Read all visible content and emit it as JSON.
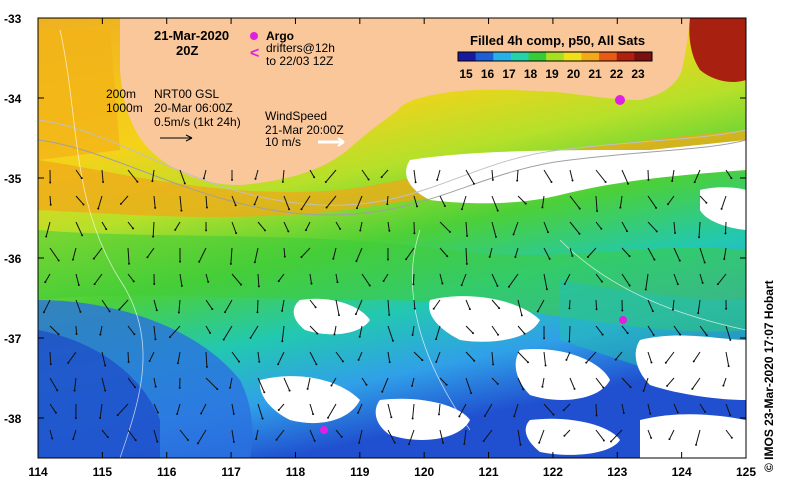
{
  "title": {
    "date": "21-Mar-2020",
    "time": "20Z"
  },
  "legend_argo": {
    "label": "Argo",
    "drifters": "drifters@12h",
    "drifters_to": "to 22/03 12Z"
  },
  "colorbar": {
    "title": "Filled 4h comp, p50, All Sats",
    "ticks": [
      "15",
      "16",
      "17",
      "18",
      "19",
      "20",
      "21",
      "22",
      "23"
    ],
    "colors": [
      "#1a1a9e",
      "#1f5fd6",
      "#27b0e8",
      "#22d4a8",
      "#35cc3a",
      "#a8e020",
      "#f0e018",
      "#f5a818",
      "#e85a14",
      "#b0200f",
      "#7a1010"
    ]
  },
  "depth_contours": {
    "shallow": "200m",
    "deep": "1000m"
  },
  "currents": {
    "source": "NRT00 GSL",
    "time": "20-Mar 06:00Z",
    "scale": "0.5m/s (1kt 24h)"
  },
  "wind": {
    "label": "WindSpeed",
    "time": "21-Mar 20:00Z",
    "scale": "10 m/s"
  },
  "axes": {
    "lat_labels": [
      "-33",
      "-34",
      "-35",
      "-36",
      "-37",
      "-38"
    ],
    "lon_labels": [
      "114",
      "115",
      "116",
      "117",
      "118",
      "119",
      "120",
      "121",
      "122",
      "123",
      "124",
      "125"
    ]
  },
  "credit": "© IMOS 23-Mar-2020 17:07 Hobart",
  "colors": {
    "land": "#f9c79a",
    "missing": "#ffffff"
  }
}
